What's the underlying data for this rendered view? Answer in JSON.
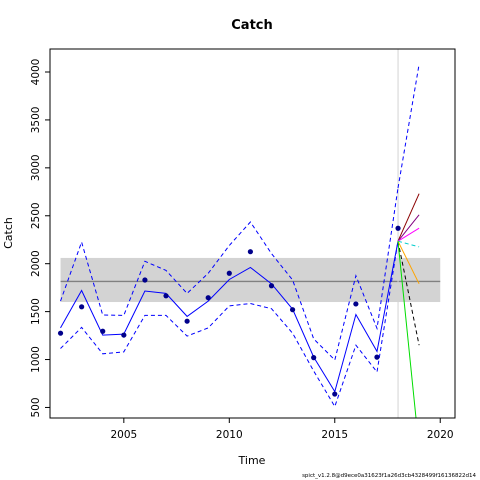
{
  "chart_data": {
    "type": "line",
    "title": "Catch",
    "xlabel": "Time",
    "ylabel": "Catch",
    "footnote": "spict_v1.2.8@d9ece0a31623f1a26d3cb4328499f16136822d14",
    "xlim": [
      2001.5,
      2020.7
    ],
    "ylim": [
      390,
      4240
    ],
    "xticks": [
      2005,
      2010,
      2015,
      2020
    ],
    "yticks": [
      500,
      1000,
      1500,
      2000,
      2500,
      3000,
      3500,
      4000
    ],
    "grid": false,
    "msy_band": {
      "x": [
        2002,
        2020
      ],
      "lower": 1600,
      "median": 1815,
      "upper": 2060,
      "fill_color": "#d3d3d3",
      "line_color": "#808080"
    },
    "observations": {
      "color": "#00008b",
      "x": [
        2002,
        2003,
        2004,
        2005,
        2006,
        2007,
        2008,
        2009,
        2010,
        2011,
        2012,
        2013,
        2014,
        2015,
        2016,
        2017,
        2018
      ],
      "y": [
        1275,
        1550,
        1295,
        1255,
        1830,
        1665,
        1400,
        1645,
        1900,
        2125,
        1770,
        1520,
        1020,
        640,
        1580,
        1025,
        2370
      ]
    },
    "series": [
      {
        "role": "estimate",
        "style": "solid",
        "color": "#0000ff",
        "x": [
          2002,
          2003,
          2004,
          2005,
          2006,
          2007,
          2008,
          2009,
          2010,
          2011,
          2012,
          2013,
          2014,
          2015,
          2016,
          2017,
          2018
        ],
        "y": [
          1330,
          1720,
          1255,
          1265,
          1715,
          1690,
          1450,
          1610,
          1835,
          1960,
          1790,
          1525,
          1025,
          665,
          1470,
          1085,
          2235
        ]
      },
      {
        "role": "upper-ci",
        "style": "dashed",
        "color": "#0000ff",
        "x": [
          2002,
          2003,
          2004,
          2005,
          2006,
          2007,
          2008,
          2009,
          2010,
          2011,
          2012,
          2013,
          2014,
          2015,
          2016,
          2017,
          2018
        ],
        "y": [
          1610,
          2225,
          1465,
          1460,
          2025,
          1930,
          1690,
          1900,
          2190,
          2435,
          2105,
          1830,
          1215,
          995,
          1875,
          1325,
          2790
        ]
      },
      {
        "role": "lower-ci",
        "style": "dashed",
        "color": "#0000ff",
        "x": [
          2002,
          2003,
          2004,
          2005,
          2006,
          2007,
          2008,
          2009,
          2010,
          2011,
          2012,
          2013,
          2014,
          2015,
          2016,
          2017,
          2018
        ],
        "y": [
          1115,
          1335,
          1060,
          1080,
          1460,
          1460,
          1245,
          1330,
          1560,
          1585,
          1530,
          1275,
          880,
          510,
          1150,
          870,
          2235
        ]
      },
      {
        "role": "forecast-upper-ci",
        "style": "dashed",
        "color": "#0000ff",
        "x": [
          2018,
          2019
        ],
        "y": [
          2790,
          4080
        ]
      },
      {
        "role": "scenario",
        "style": "dashed",
        "color": "#000000",
        "x": [
          2018,
          2019
        ],
        "y": [
          2235,
          1150
        ]
      },
      {
        "role": "scenario",
        "style": "solid",
        "color": "#8b0000",
        "x": [
          2018,
          2019
        ],
        "y": [
          2235,
          2730
        ]
      },
      {
        "role": "scenario",
        "style": "solid",
        "color": "#800080",
        "x": [
          2018,
          2019
        ],
        "y": [
          2235,
          2510
        ]
      },
      {
        "role": "scenario",
        "style": "solid",
        "color": "#ff00ff",
        "x": [
          2018,
          2019
        ],
        "y": [
          2235,
          2370
        ]
      },
      {
        "role": "scenario",
        "style": "dashed",
        "color": "#00cccc",
        "x": [
          2018,
          2019
        ],
        "y": [
          2235,
          2175
        ]
      },
      {
        "role": "scenario",
        "style": "solid",
        "color": "#ffa500",
        "x": [
          2018,
          2019
        ],
        "y": [
          2235,
          1790
        ]
      },
      {
        "role": "scenario",
        "style": "solid",
        "color": "#00dd00",
        "x": [
          2018,
          2018.85
        ],
        "y": [
          2235,
          390
        ]
      }
    ],
    "reference_lines": [
      {
        "orientation": "vertical",
        "x": 2018,
        "color": "#d3d3d3"
      }
    ]
  }
}
